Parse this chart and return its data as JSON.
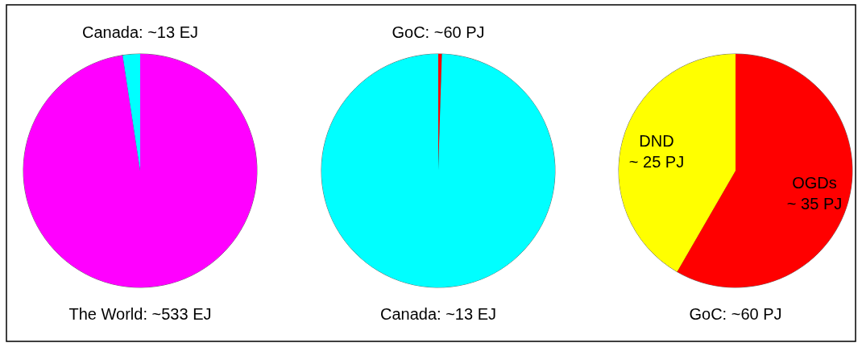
{
  "chart_data": [
    {
      "type": "pie",
      "title": "The World: ~533 EJ",
      "categories": [
        null,
        "Canada: ~13 EJ"
      ],
      "values": [
        97.6,
        2.4
      ],
      "colors": [
        "#ff00ff",
        "#00ffff"
      ]
    },
    {
      "type": "pie",
      "title": "Canada: ~13 EJ",
      "categories": [
        "GoC: ~60 PJ",
        null
      ],
      "values": [
        0.5,
        99.5
      ],
      "colors": [
        "#ff0000",
        "#00ffff"
      ]
    },
    {
      "type": "pie",
      "title": "GoC: ~60 PJ",
      "categories": [
        "OGDs",
        "DND"
      ],
      "values": [
        35,
        25
      ],
      "colors": [
        "#ff0000",
        "#ffff00"
      ],
      "value_labels": [
        "~ 35 PJ",
        "~ 25 PJ"
      ]
    }
  ]
}
